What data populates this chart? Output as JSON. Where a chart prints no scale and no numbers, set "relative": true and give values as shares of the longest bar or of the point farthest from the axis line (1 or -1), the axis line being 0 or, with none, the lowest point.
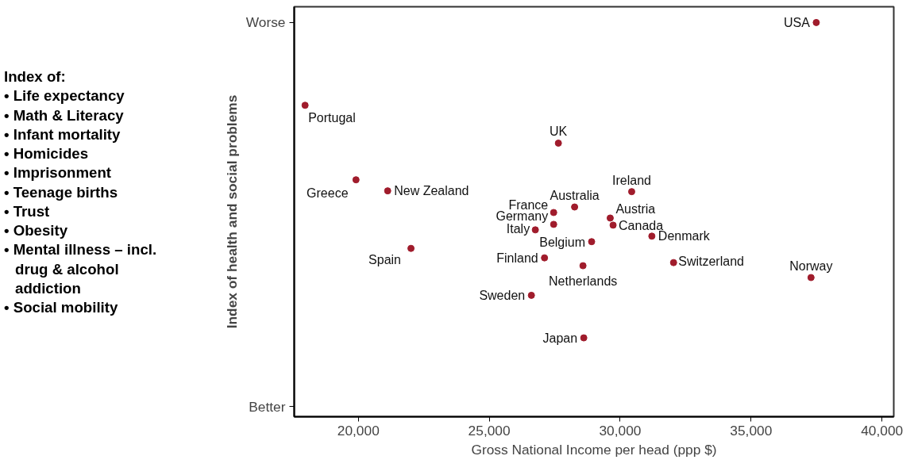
{
  "chart_data": {
    "type": "scatter",
    "relative": true,
    "xlabel": "Gross National Income per head (ppp $)",
    "ylabel": "Index of health and social problems",
    "annotations": [
      "Worse",
      "Better",
      "Index of:",
      "• Life expectancy",
      "• Math & Literacy",
      "• Infant mortality",
      "• Homicides",
      "• Imprisonment",
      "• Teenage births",
      "• Trust",
      "• Obesity",
      "• Mental illness – incl. drug & alcohol addiction",
      "• Social mobility",
      {
        "text": "USA",
        "x": 37490,
        "y": 1.0
      },
      {
        "text": "Portugal",
        "x": 17965,
        "y": 0.79
      },
      {
        "text": "UK",
        "x": 27640,
        "y": 0.694
      },
      {
        "text": "Greece",
        "x": 19910,
        "y": 0.601
      },
      {
        "text": "New Zealand",
        "x": 21120,
        "y": 0.573
      },
      {
        "text": "Spain",
        "x": 22010,
        "y": 0.427
      },
      {
        "text": "Ireland",
        "x": 30440,
        "y": 0.571
      },
      {
        "text": "Australia",
        "x": 28260,
        "y": 0.532
      },
      {
        "text": "France",
        "x": 27460,
        "y": 0.518
      },
      {
        "text": "Germany",
        "x": 27460,
        "y": 0.488
      },
      {
        "text": "Italy",
        "x": 26760,
        "y": 0.474
      },
      {
        "text": "Austria",
        "x": 29620,
        "y": 0.504
      },
      {
        "text": "Canada",
        "x": 29730,
        "y": 0.486
      },
      {
        "text": "Denmark",
        "x": 31210,
        "y": 0.458
      },
      {
        "text": "Belgium",
        "x": 28910,
        "y": 0.444
      },
      {
        "text": "Finland",
        "x": 27110,
        "y": 0.403
      },
      {
        "text": "Switzerland",
        "x": 32040,
        "y": 0.391
      },
      {
        "text": "Netherlands",
        "x": 28580,
        "y": 0.383
      },
      {
        "text": "Norway",
        "x": 37290,
        "y": 0.353
      },
      {
        "text": "Sweden",
        "x": 26610,
        "y": 0.308
      },
      {
        "text": "Japan",
        "x": 28610,
        "y": 0.2
      }
    ],
    "xlim": [
      17550,
      40450
    ],
    "xticks": [
      {
        "value": 20000,
        "label": "20,000"
      },
      {
        "value": 25000,
        "label": "25,000"
      },
      {
        "value": 30000,
        "label": "30,000"
      },
      {
        "value": 35000,
        "label": "35,000"
      },
      {
        "value": 40000,
        "label": "40,000"
      }
    ],
    "grid": false,
    "marker": "circle",
    "series": [
      {
        "color": "#a01c2c",
        "x": [
          37490,
          17965,
          27640,
          19910,
          21120,
          22010,
          30440,
          28260,
          27460,
          27460,
          26760,
          29620,
          29730,
          31210,
          28910,
          27110,
          32040,
          28580,
          37290,
          26610,
          28610
        ],
        "values": [
          1.0,
          0.79,
          0.694,
          0.601,
          0.573,
          0.427,
          0.571,
          0.532,
          0.518,
          0.488,
          0.474,
          0.504,
          0.486,
          0.458,
          0.444,
          0.403,
          0.391,
          0.383,
          0.353,
          0.308,
          0.2
        ]
      }
    ]
  }
}
